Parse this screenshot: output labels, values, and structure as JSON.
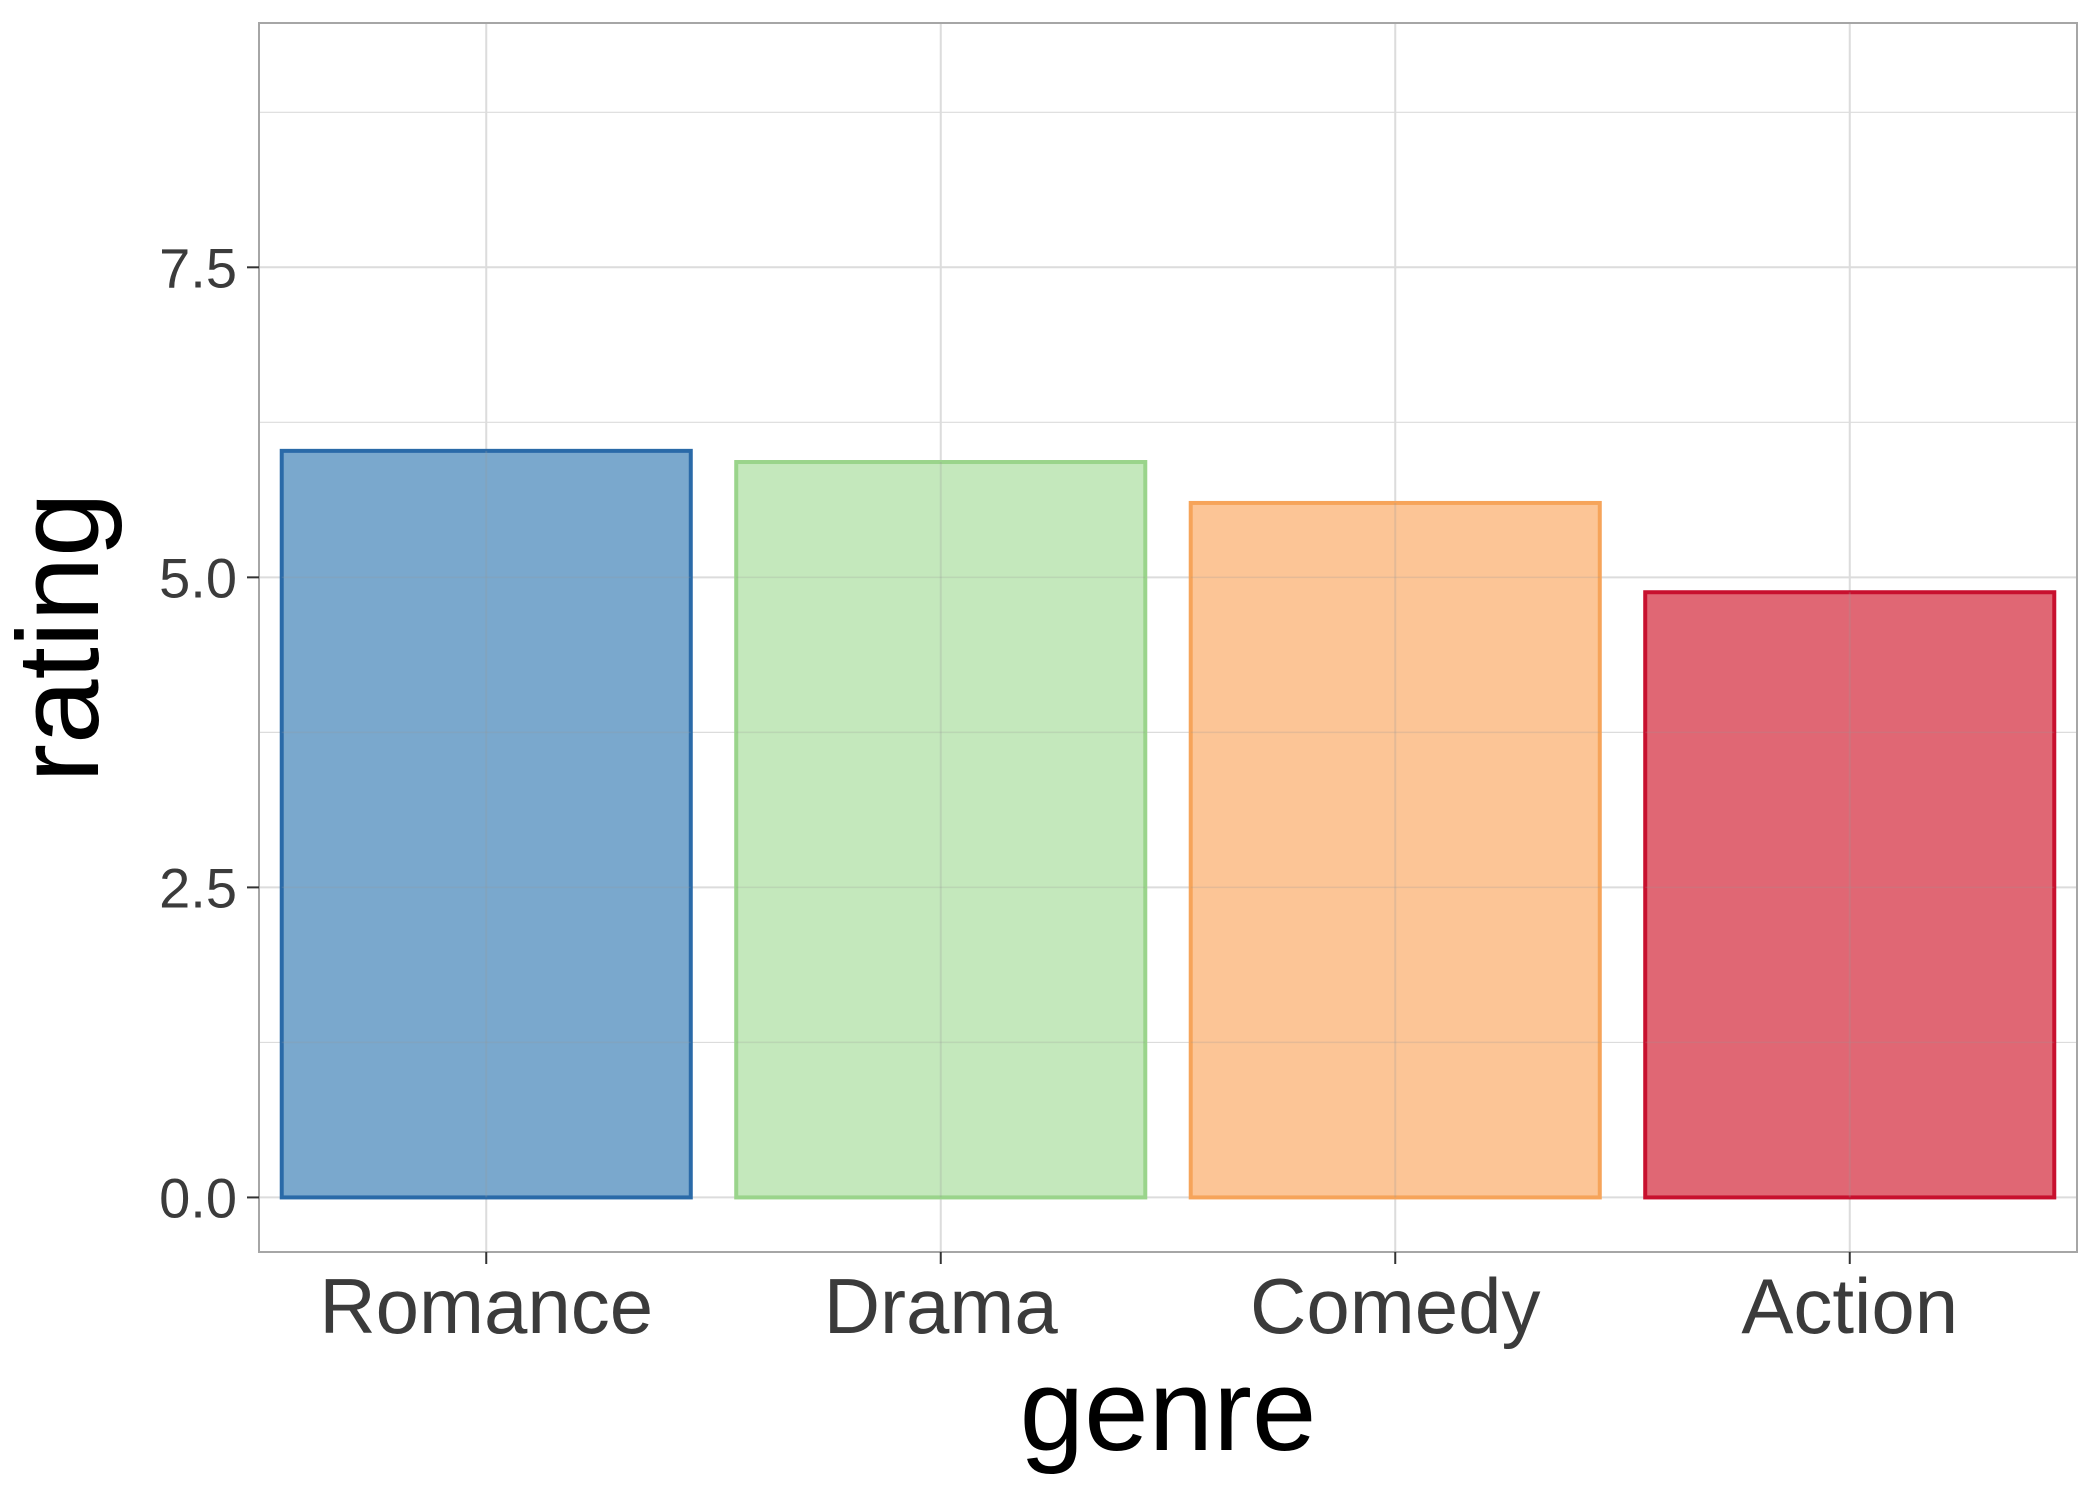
{
  "chart_data": {
    "type": "bar",
    "title": "",
    "xlabel": "genre",
    "ylabel": "rating",
    "categories": [
      "Romance",
      "Drama",
      "Comedy",
      "Action"
    ],
    "values": [
      6.02,
      5.93,
      5.6,
      4.88
    ],
    "ylim": [
      -0.44,
      9.47
    ],
    "yticks": [
      0,
      2.5,
      5,
      7.5
    ],
    "ytick_labels": [
      "0.0",
      "2.5",
      "5.0",
      "7.5"
    ],
    "grid": true,
    "legend": "none",
    "fill_colors": [
      "#7aa8cd",
      "#c4e8bc",
      "#fcc596",
      "#e06774"
    ],
    "border_colors": [
      "#2a6aa8",
      "#9ad48b",
      "#f6a45a",
      "#c8102e"
    ],
    "panel_border_color": "#a6a6a6",
    "grid_color": "#dcdcdc"
  }
}
